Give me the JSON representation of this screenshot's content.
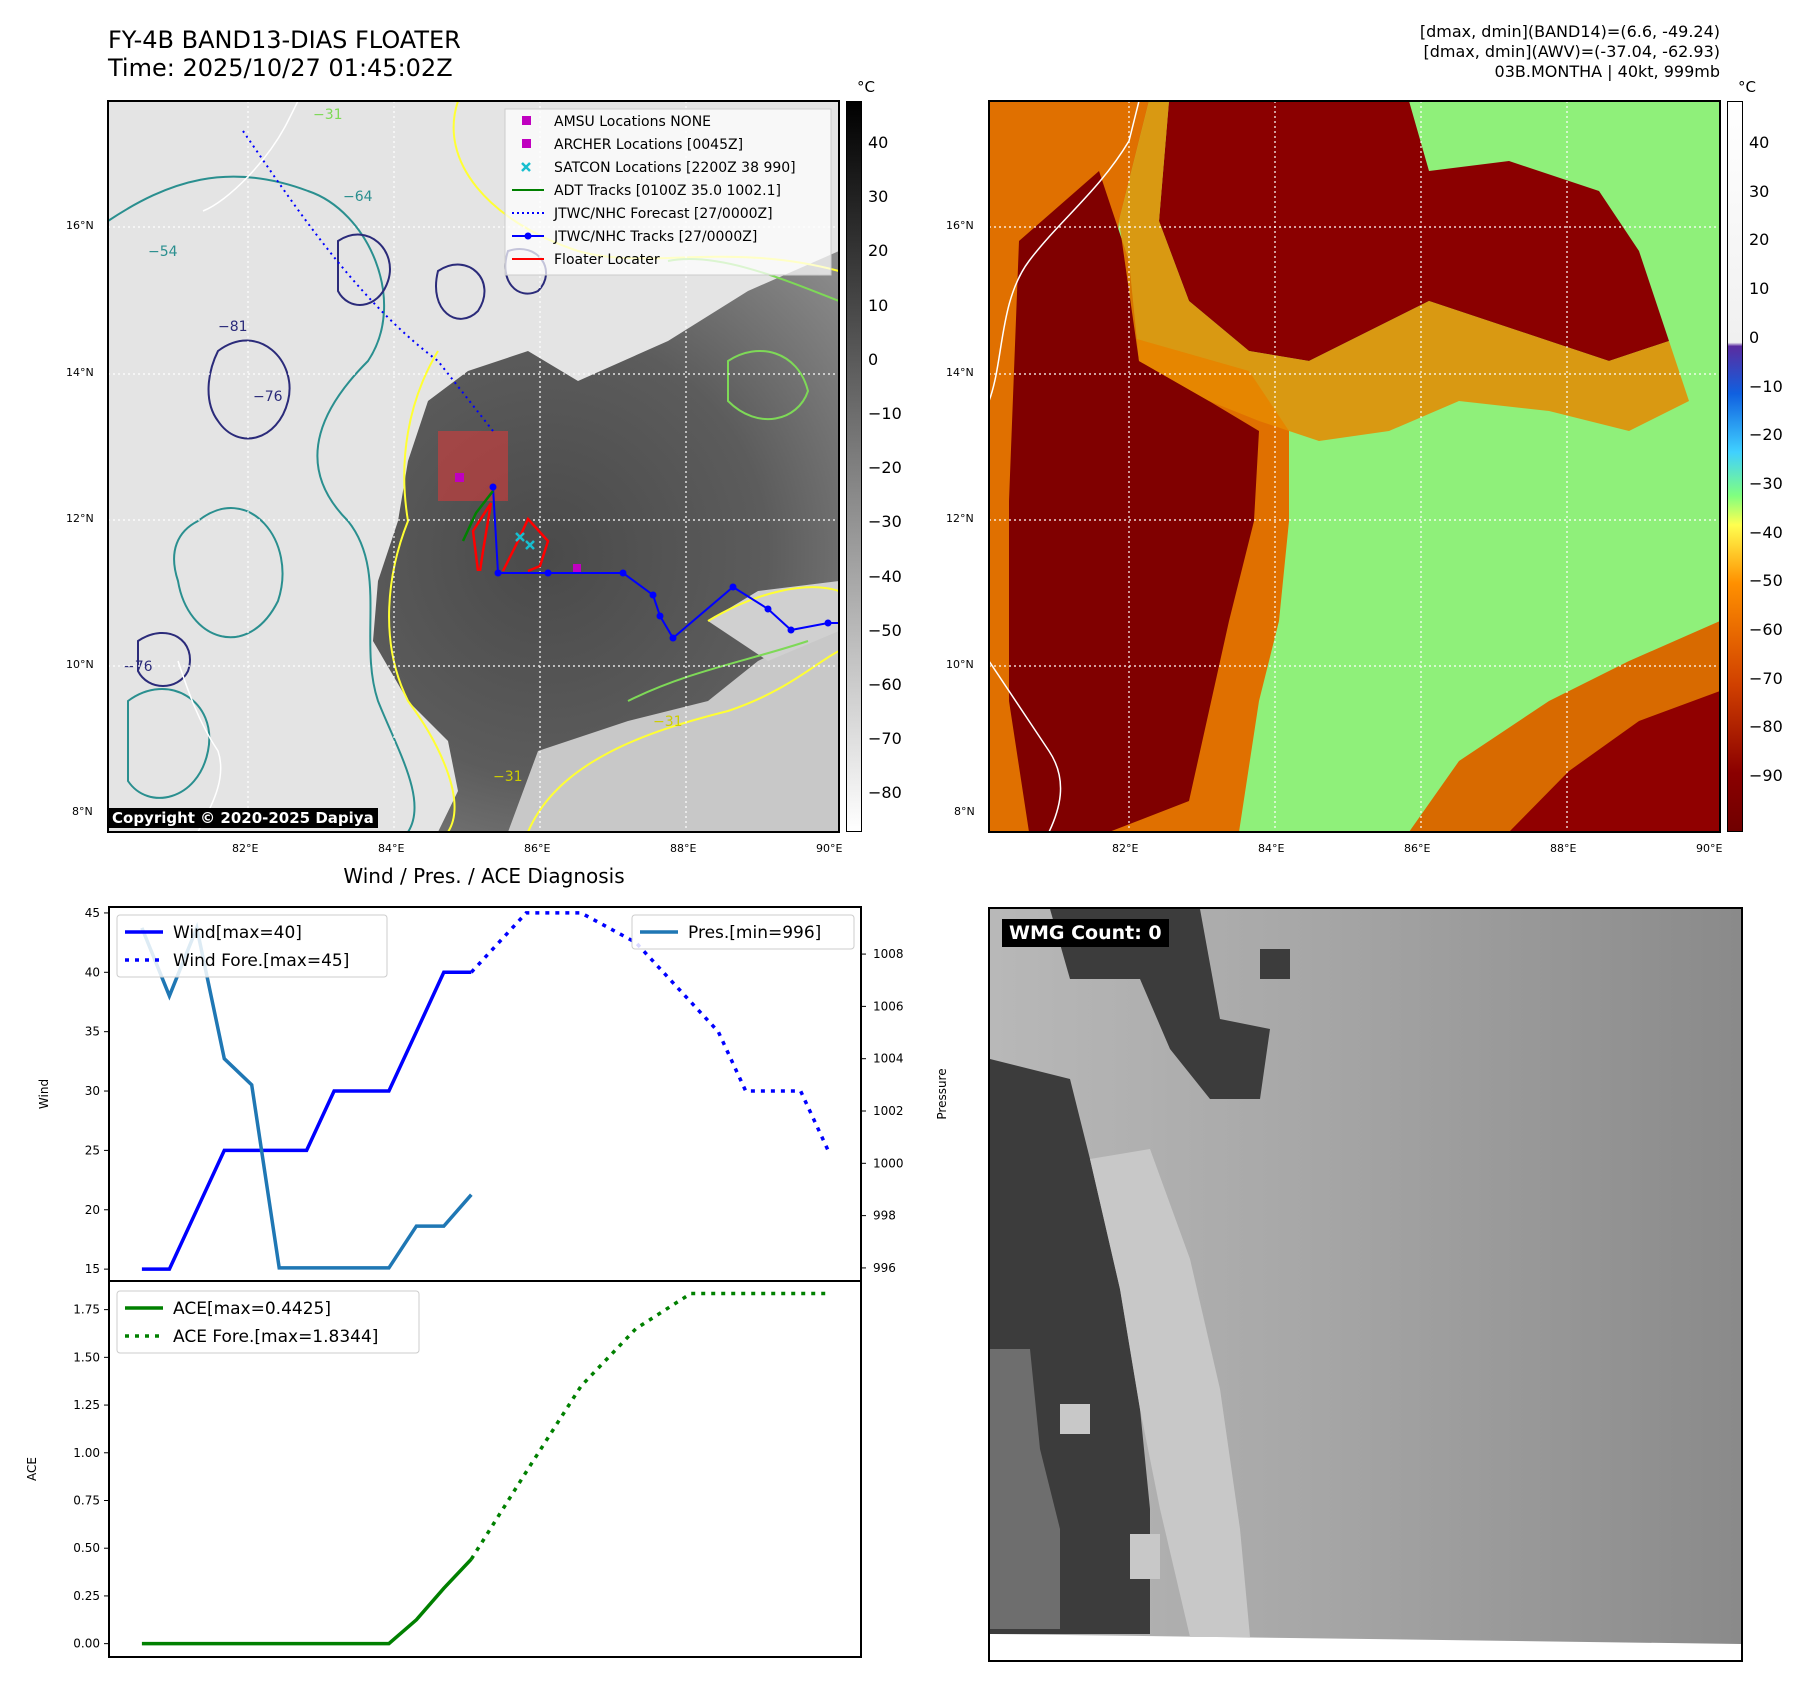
{
  "header": {
    "title_line1": "FY-4B BAND13-DIAS FLOATER",
    "title_line2": "Time: 2025/10/27 01:45:02Z",
    "info_line1": "[dmax, dmin](BAND14)=(6.6, -49.24)",
    "info_line2": "[dmax, dmin](AWV)=(-37.04, -62.93)",
    "info_line3": "03B.MONTHA | 40kt, 999mb"
  },
  "map_left": {
    "lon_ticks": [
      "82°E",
      "84°E",
      "86°E",
      "88°E",
      "90°E"
    ],
    "lat_ticks": [
      "16°N",
      "14°N",
      "12°N",
      "10°N",
      "8°N"
    ],
    "colorbar_unit": "°C",
    "colorbar_ticks": [
      "40",
      "30",
      "20",
      "10",
      "0",
      "−10",
      "−20",
      "−30",
      "−40",
      "−50",
      "−60",
      "−70",
      "−80"
    ],
    "copyright": "Copyright © 2020-2025 Dapiya",
    "contour_labels": [
      "−31",
      "−64",
      "−76",
      "−81",
      "−54"
    ],
    "legend": [
      {
        "label": "AMSU Locations NONE",
        "color": "#c000c0",
        "kind": "square"
      },
      {
        "label": "ARCHER Locations [0045Z]",
        "color": "#c000c0",
        "kind": "square"
      },
      {
        "label": "SATCON Locations [2200Z 38 990]",
        "color": "#17becf",
        "kind": "x"
      },
      {
        "label": "ADT Tracks [0100Z 35.0 1002.1]",
        "color": "#008000",
        "kind": "line"
      },
      {
        "label": "JTWC/NHC Forecast [27/0000Z]",
        "color": "#0000ff",
        "kind": "dotted"
      },
      {
        "label": "JTWC/NHC Tracks [27/0000Z]",
        "color": "#0000ff",
        "kind": "dotline"
      },
      {
        "label": "Floater Locater",
        "color": "#ff0000",
        "kind": "line"
      }
    ]
  },
  "map_right": {
    "lon_ticks": [
      "82°E",
      "84°E",
      "86°E",
      "88°E",
      "90°E"
    ],
    "lat_ticks": [
      "16°N",
      "14°N",
      "12°N",
      "10°N",
      "8°N"
    ],
    "colorbar_unit": "°C",
    "colorbar_ticks": [
      "40",
      "30",
      "20",
      "10",
      "0",
      "−10",
      "−20",
      "−30",
      "−40",
      "−50",
      "−60",
      "−70",
      "−80",
      "−90"
    ]
  },
  "diagnosis": {
    "title": "Wind / Pres. / ACE Diagnosis",
    "wmg_label": "WMG Count: 0"
  },
  "chart_data": [
    {
      "type": "line",
      "title": "Wind / Pres. / ACE Diagnosis",
      "ylabel": "Wind",
      "y2label": "Pressure",
      "ylim": [
        14,
        45.5
      ],
      "y2lim": [
        995.5,
        1009.8
      ],
      "yticks": [
        15,
        20,
        25,
        30,
        35,
        40,
        45
      ],
      "y2ticks": [
        996,
        998,
        1000,
        1002,
        1004,
        1006,
        1008
      ],
      "series": [
        {
          "name": "Wind[max=40]",
          "axis": "left",
          "color": "#0000ff",
          "style": "solid",
          "x": [
            0,
            1,
            2,
            3,
            4,
            5,
            6,
            7,
            8,
            9,
            10,
            11,
            12
          ],
          "values": [
            15,
            15,
            20,
            25,
            25,
            25,
            25,
            30,
            30,
            30,
            35,
            40,
            40
          ]
        },
        {
          "name": "Wind Fore.[max=45]",
          "axis": "left",
          "color": "#0000ff",
          "style": "dotted",
          "x": [
            12,
            14,
            16,
            18,
            20,
            21,
            22,
            23,
            24,
            25
          ],
          "values": [
            40,
            45,
            45,
            42.5,
            37.5,
            35,
            30,
            30,
            30,
            25
          ]
        },
        {
          "name": "Pres.[min=996]",
          "axis": "right",
          "color": "#1f77b4",
          "style": "solid",
          "x": [
            0,
            1,
            2,
            3,
            4,
            5,
            6,
            7,
            8,
            9,
            10,
            11,
            12
          ],
          "values": [
            1009,
            1006.4,
            1009,
            1004,
            1003,
            996,
            996,
            996,
            996,
            996,
            997.6,
            997.6,
            998.8
          ]
        }
      ]
    },
    {
      "type": "line",
      "ylabel": "ACE",
      "ylim": [
        -0.07,
        1.9
      ],
      "yticks": [
        0,
        0.25,
        0.5,
        0.75,
        1.0,
        1.25,
        1.5,
        1.75
      ],
      "ytick_labels": [
        "0.00",
        "0.25",
        "0.50",
        "0.75",
        "1.00",
        "1.25",
        "1.50",
        "1.75"
      ],
      "series": [
        {
          "name": "ACE[max=0.4425]",
          "color": "#008000",
          "style": "solid",
          "x": [
            0,
            1,
            2,
            3,
            4,
            5,
            6,
            7,
            8,
            9,
            10,
            11,
            12
          ],
          "values": [
            0,
            0,
            0,
            0,
            0,
            0,
            0,
            0,
            0,
            0,
            0.125,
            0.29,
            0.4425
          ]
        },
        {
          "name": "ACE Fore.[max=1.8344]",
          "color": "#008000",
          "style": "dotted",
          "x": [
            12,
            14,
            16,
            18,
            20,
            21,
            22,
            23,
            24,
            25
          ],
          "values": [
            0.4425,
            0.9,
            1.35,
            1.65,
            1.8344,
            1.8344,
            1.8344,
            1.8344,
            1.8344,
            1.8344
          ]
        }
      ]
    }
  ]
}
